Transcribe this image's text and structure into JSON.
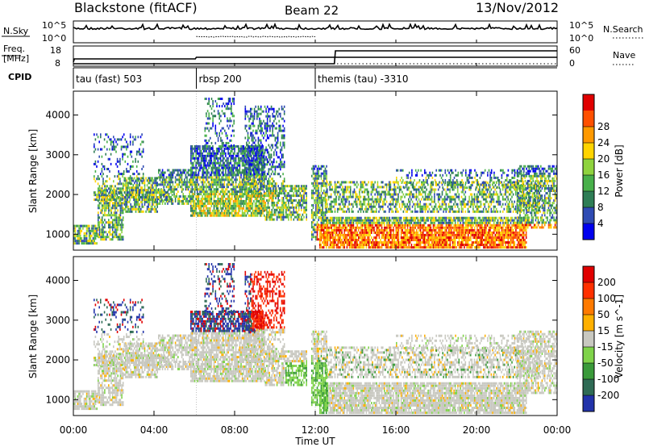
{
  "header": {
    "station": "Blackstone (fitACF)",
    "beam": "Beam 22",
    "date": "13/Nov/2012"
  },
  "panels_labels": {
    "nsky": "N.Sky",
    "nsearch": "N.Search",
    "freq": "Freq.",
    "freq_unit": "[MHz]",
    "nave": "Nave",
    "cpid": "CPID"
  },
  "tick_labels": {
    "nsky_top": "10^5",
    "nsky_bottom": "10^0",
    "nsearch_top": "10^5",
    "nsearch_bottom": "10^0",
    "freq_top": "18",
    "freq_bottom": "8",
    "nave_top": "60",
    "nave_bottom": "0"
  },
  "cpid_segments": [
    {
      "label": "tau (fast) 503",
      "start_hr": 0,
      "end_hr": 6.1
    },
    {
      "label": "rbsp 200",
      "start_hr": 6.1,
      "end_hr": 12.0
    },
    {
      "label": "themis (tau) -3310",
      "start_hr": 12.0,
      "end_hr": 24
    }
  ],
  "chart_data": [
    {
      "type": "heatmap",
      "name": "power",
      "xlabel": "Time UT",
      "ylabel": "Slant Range [km]",
      "xlim": [
        0,
        24
      ],
      "ylim": [
        600,
        4600
      ],
      "x_ticks": [
        "00:00",
        "04:00",
        "08:00",
        "12:00",
        "16:00",
        "20:00",
        "00:00"
      ],
      "y_ticks": [
        1000,
        2000,
        3000,
        4000
      ],
      "colorbar": {
        "label": "Power [dB]",
        "ticks": [
          4,
          8,
          12,
          16,
          20,
          24,
          28
        ],
        "colors": [
          "#0000ee",
          "#2f4bb3",
          "#2e7d55",
          "#48b04a",
          "#8fd33e",
          "#ffd400",
          "#ff9900",
          "#ff5000",
          "#e00000"
        ]
      }
    },
    {
      "type": "heatmap",
      "name": "velocity",
      "xlabel": "Time UT",
      "ylabel": "Slant Range [km]",
      "xlim": [
        0,
        24
      ],
      "ylim": [
        600,
        4600
      ],
      "x_ticks": [
        "00:00",
        "04:00",
        "08:00",
        "12:00",
        "16:00",
        "20:00",
        "00:00"
      ],
      "y_ticks": [
        1000,
        2000,
        3000,
        4000
      ],
      "colorbar": {
        "label": "Velocity [m s^-1]",
        "ticks": [
          200,
          100,
          50,
          15,
          -15,
          -50,
          -100,
          -200
        ],
        "colors": [
          "#2233aa",
          "#2f6b55",
          "#3a9a3a",
          "#7fd34a",
          "#c8c8c0",
          "#ffb000",
          "#ff7a00",
          "#ff3000",
          "#e00000"
        ]
      }
    }
  ]
}
